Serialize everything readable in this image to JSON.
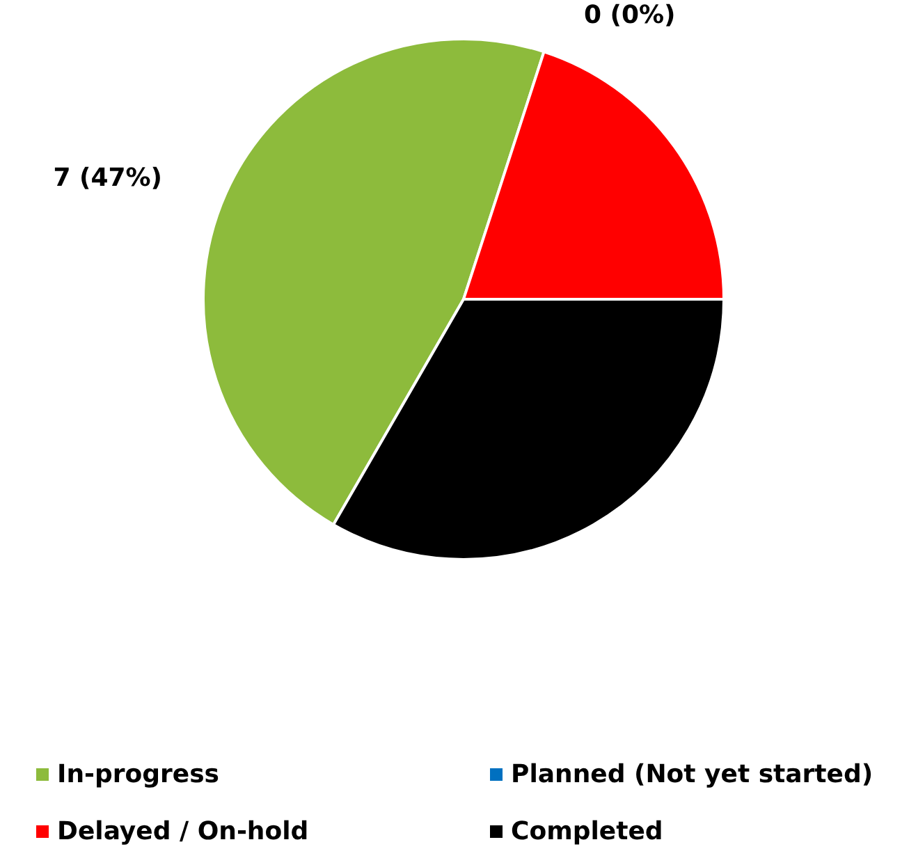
{
  "chart_data": {
    "type": "pie",
    "categories": [
      "In-progress",
      "Planned (Not yet started)",
      "Delayed / On-hold",
      "Completed"
    ],
    "values": [
      7,
      0,
      3,
      5
    ],
    "colors": [
      "#8dbb3c",
      "#0070c0",
      "#ff0000",
      "#000000"
    ],
    "value_labels": [
      "7 (47%)",
      "0 (0%)",
      null,
      null
    ],
    "legend": "bottom"
  }
}
